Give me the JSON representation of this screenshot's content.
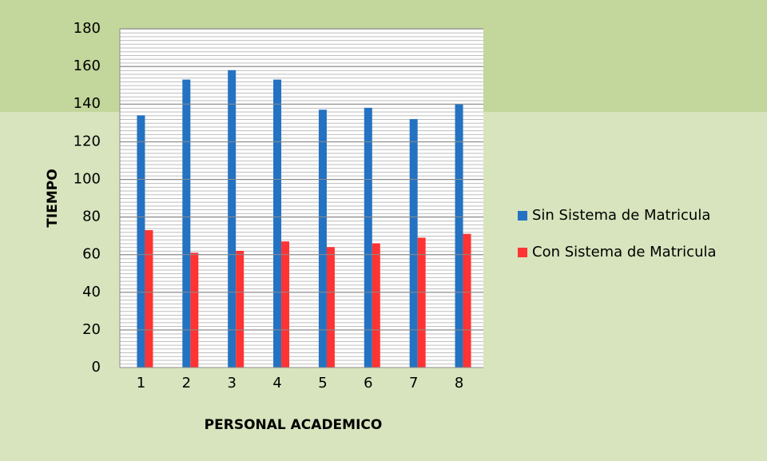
{
  "chart_data": {
    "type": "bar",
    "categories": [
      "1",
      "2",
      "3",
      "4",
      "5",
      "6",
      "7",
      "8"
    ],
    "series": [
      {
        "name": "Sin Sistema de Matricula",
        "color": "#2472c2",
        "values": [
          134,
          153,
          158,
          153,
          137,
          138,
          132,
          140
        ]
      },
      {
        "name": "Con Sistema de Matricula",
        "color": "#ff3333",
        "values": [
          73,
          61,
          62,
          67,
          64,
          66,
          69,
          71
        ]
      }
    ],
    "xlabel": "PERSONAL ACADEMICO",
    "ylabel": "TIEMPO",
    "ylim": [
      0,
      180
    ],
    "yticks": [
      0,
      20,
      40,
      60,
      80,
      100,
      120,
      140,
      160,
      180
    ],
    "grid": true,
    "legend": "right"
  }
}
